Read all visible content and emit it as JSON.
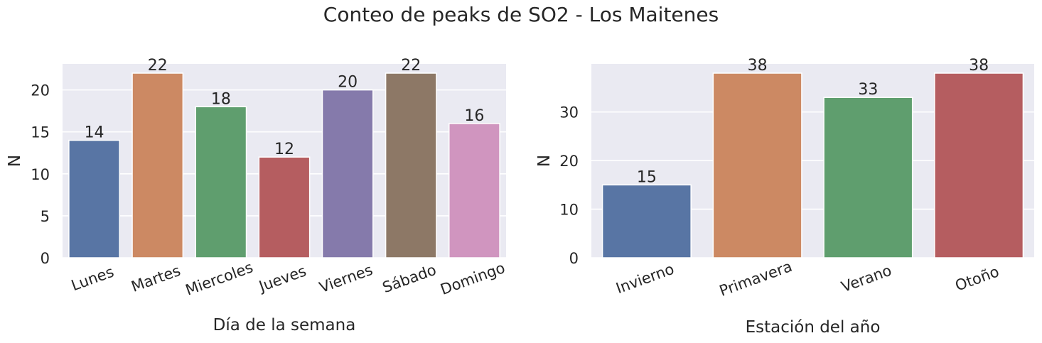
{
  "title": "Conteo de peaks de SO2 - Los Maitenes",
  "style": {
    "panel_bg": "#eaeaf2",
    "grid": "#ffffff"
  },
  "chart_data": [
    {
      "type": "bar",
      "xlabel": "Día de la semana",
      "ylabel": "N",
      "ylim": [
        0,
        23.1
      ],
      "yticks": [
        0,
        5,
        10,
        15,
        20
      ],
      "grid": true,
      "categories": [
        "Lunes",
        "Martes",
        "Miercoles",
        "Jueves",
        "Viernes",
        "Sábado",
        "Domingo"
      ],
      "values": [
        14,
        22,
        18,
        12,
        20,
        22,
        16
      ],
      "colors": [
        "#5875a4",
        "#cc8963",
        "#5f9e6e",
        "#b55d60",
        "#857aab",
        "#8d7866",
        "#d095bf"
      ],
      "data_labels": [
        "14",
        "22",
        "18",
        "12",
        "20",
        "22",
        "16"
      ]
    },
    {
      "type": "bar",
      "xlabel": "Estación del año",
      "ylabel": "N",
      "ylim": [
        0,
        39.9
      ],
      "yticks": [
        0,
        10,
        20,
        30
      ],
      "grid": true,
      "categories": [
        "Invierno",
        "Primavera",
        "Verano",
        "Otoño"
      ],
      "values": [
        15,
        38,
        33,
        38
      ],
      "colors": [
        "#5875a4",
        "#cc8963",
        "#5f9e6e",
        "#b55d60"
      ],
      "data_labels": [
        "15",
        "38",
        "33",
        "38"
      ]
    }
  ]
}
